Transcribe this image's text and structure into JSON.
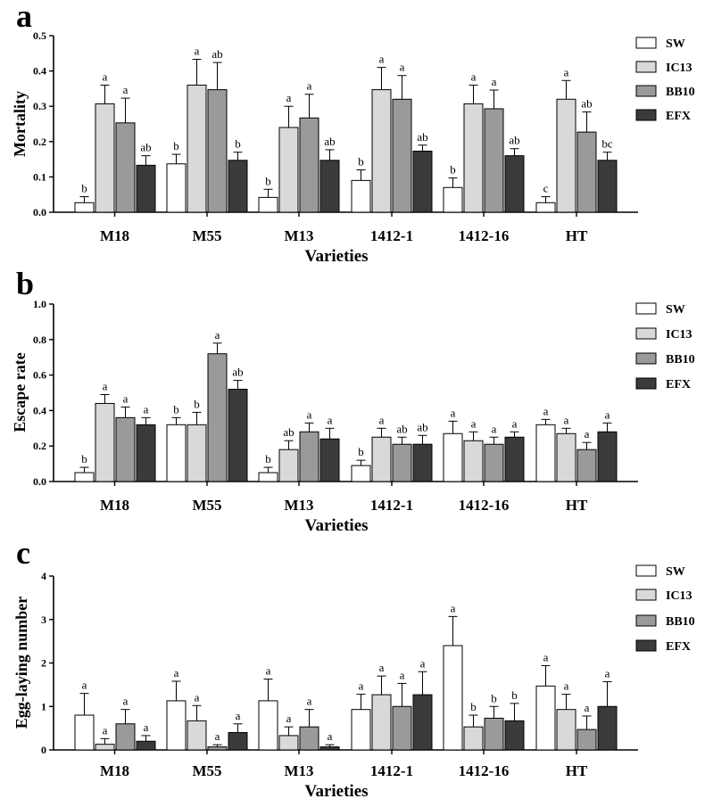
{
  "panels": [
    {
      "label": "a",
      "colors": {
        "SW": "#ffffff",
        "IC13": "#d9d9d9",
        "BB10": "#9a9a9a",
        "EFX": "#3a3a3a"
      }
    }
  ],
  "chart_data": [
    {
      "type": "bar",
      "panel": "a",
      "title": "",
      "xlabel": "Varieties",
      "ylabel": "Mortality",
      "ylim": [
        0,
        0.5
      ],
      "yticks": [
        "0.0",
        "0.1",
        "0.2",
        "0.3",
        "0.4",
        "0.5"
      ],
      "categories": [
        "M18",
        "M55",
        "M13",
        "1412-1",
        "1412-16",
        "HT"
      ],
      "series": [
        {
          "name": "SW",
          "color": "#ffffff",
          "values": [
            0.027,
            0.137,
            0.042,
            0.09,
            0.07,
            0.027
          ],
          "errors": [
            0.017,
            0.027,
            0.023,
            0.03,
            0.027,
            0.017
          ],
          "labels": [
            "b",
            "b",
            "b",
            "b",
            "b",
            "c"
          ]
        },
        {
          "name": "IC13",
          "color": "#d9d9d9",
          "values": [
            0.307,
            0.36,
            0.24,
            0.347,
            0.307,
            0.32
          ],
          "errors": [
            0.053,
            0.073,
            0.06,
            0.063,
            0.053,
            0.053
          ],
          "labels": [
            "a",
            "a",
            "a",
            "a",
            "a",
            "a"
          ]
        },
        {
          "name": "BB10",
          "color": "#9a9a9a",
          "values": [
            0.253,
            0.347,
            0.267,
            0.32,
            0.293,
            0.227
          ],
          "errors": [
            0.07,
            0.077,
            0.067,
            0.067,
            0.053,
            0.057
          ],
          "labels": [
            "a",
            "ab",
            "a",
            "a",
            "a",
            "ab"
          ]
        },
        {
          "name": "EFX",
          "color": "#3a3a3a",
          "values": [
            0.133,
            0.147,
            0.147,
            0.173,
            0.16,
            0.147
          ],
          "errors": [
            0.027,
            0.023,
            0.03,
            0.017,
            0.02,
            0.023
          ],
          "labels": [
            "ab",
            "b",
            "ab",
            "ab",
            "ab",
            "bc"
          ]
        }
      ]
    },
    {
      "type": "bar",
      "panel": "b",
      "title": "",
      "xlabel": "Varieties",
      "ylabel": "Escape rate",
      "ylim": [
        0,
        1.0
      ],
      "yticks": [
        "0.0",
        "0.2",
        "0.4",
        "0.6",
        "0.8",
        "1.0"
      ],
      "categories": [
        "M18",
        "M55",
        "M13",
        "1412-1",
        "1412-16",
        "HT"
      ],
      "series": [
        {
          "name": "SW",
          "color": "#ffffff",
          "values": [
            0.05,
            0.32,
            0.05,
            0.09,
            0.27,
            0.32
          ],
          "errors": [
            0.03,
            0.04,
            0.03,
            0.03,
            0.07,
            0.03
          ],
          "labels": [
            "b",
            "b",
            "b",
            "b",
            "a",
            "a"
          ]
        },
        {
          "name": "IC13",
          "color": "#d9d9d9",
          "values": [
            0.44,
            0.32,
            0.18,
            0.25,
            0.23,
            0.27
          ],
          "errors": [
            0.05,
            0.07,
            0.05,
            0.05,
            0.05,
            0.03
          ],
          "labels": [
            "a",
            "b",
            "ab",
            "a",
            "a",
            "a"
          ]
        },
        {
          "name": "BB10",
          "color": "#9a9a9a",
          "values": [
            0.36,
            0.72,
            0.28,
            0.21,
            0.21,
            0.18
          ],
          "errors": [
            0.06,
            0.06,
            0.05,
            0.04,
            0.04,
            0.04
          ],
          "labels": [
            "a",
            "a",
            "a",
            "ab",
            "a",
            "a"
          ]
        },
        {
          "name": "EFX",
          "color": "#3a3a3a",
          "values": [
            0.32,
            0.52,
            0.24,
            0.21,
            0.25,
            0.28
          ],
          "errors": [
            0.04,
            0.05,
            0.06,
            0.05,
            0.03,
            0.05
          ],
          "labels": [
            "a",
            "ab",
            "a",
            "ab",
            "a",
            "a"
          ]
        }
      ]
    },
    {
      "type": "bar",
      "panel": "c",
      "title": "",
      "xlabel": "Varieties",
      "ylabel": "Egg-laying number",
      "ylim": [
        0,
        4
      ],
      "yticks": [
        "0",
        "1",
        "2",
        "3",
        "4"
      ],
      "categories": [
        "M18",
        "M55",
        "M13",
        "1412-1",
        "1412-16",
        "HT"
      ],
      "series": [
        {
          "name": "SW",
          "color": "#ffffff",
          "values": [
            0.8,
            1.13,
            1.13,
            0.93,
            2.4,
            1.47
          ],
          "errors": [
            0.5,
            0.45,
            0.5,
            0.35,
            0.67,
            0.47
          ],
          "labels": [
            "a",
            "a",
            "a",
            "a",
            "a",
            "a"
          ]
        },
        {
          "name": "IC13",
          "color": "#d9d9d9",
          "values": [
            0.13,
            0.67,
            0.33,
            1.27,
            0.53,
            0.93
          ],
          "errors": [
            0.13,
            0.35,
            0.2,
            0.43,
            0.27,
            0.35
          ],
          "labels": [
            "a",
            "a",
            "a",
            "a",
            "b",
            "a"
          ]
        },
        {
          "name": "BB10",
          "color": "#9a9a9a",
          "values": [
            0.6,
            0.07,
            0.53,
            1.0,
            0.73,
            0.47
          ],
          "errors": [
            0.33,
            0.05,
            0.4,
            0.53,
            0.27,
            0.31
          ],
          "labels": [
            "a",
            "a",
            "a",
            "a",
            "b",
            "a"
          ]
        },
        {
          "name": "EFX",
          "color": "#3a3a3a",
          "values": [
            0.2,
            0.4,
            0.07,
            1.27,
            0.67,
            1.0
          ],
          "errors": [
            0.13,
            0.2,
            0.05,
            0.53,
            0.4,
            0.57
          ],
          "labels": [
            "a",
            "a",
            "a",
            "a",
            "b",
            "a"
          ]
        }
      ]
    }
  ]
}
